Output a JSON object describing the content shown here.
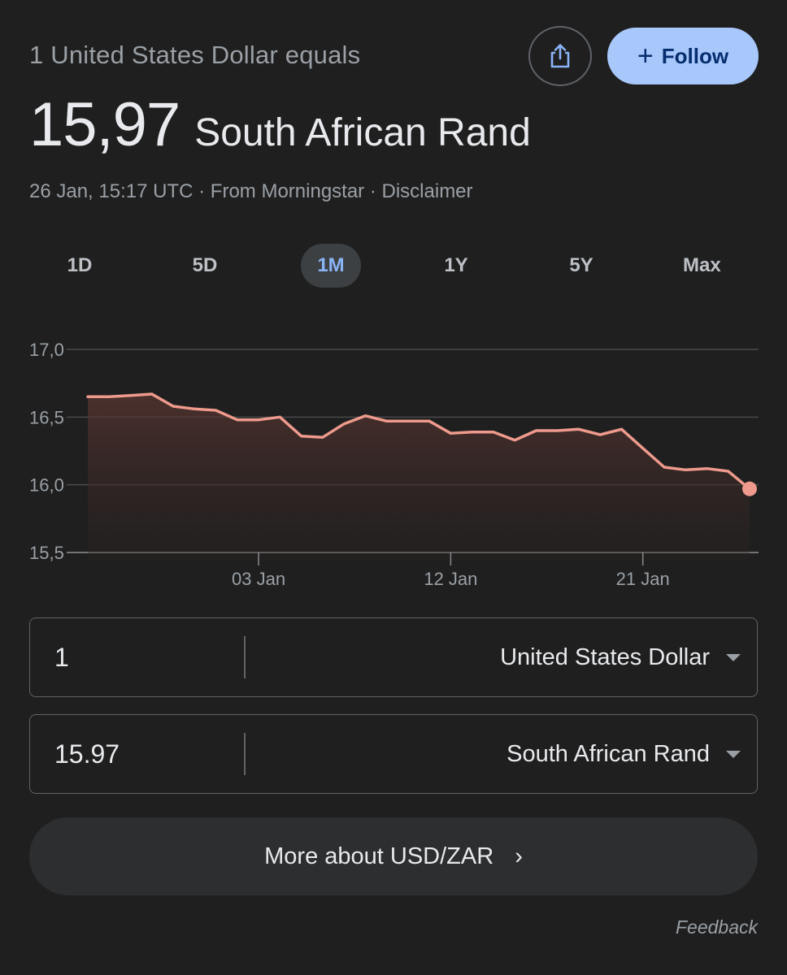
{
  "header": {
    "subtitle": "1 United States Dollar equals",
    "rate_value": "15,97",
    "rate_currency": "South African Rand",
    "timestamp": "26 Jan, 15:17 UTC",
    "source": "From Morningstar",
    "disclaimer": "Disclaimer",
    "separator": "·",
    "share_icon": "share-icon",
    "follow_label": "Follow",
    "follow_plus": "+"
  },
  "ranges": [
    {
      "label": "1D",
      "active": false
    },
    {
      "label": "5D",
      "active": false
    },
    {
      "label": "1M",
      "active": true
    },
    {
      "label": "1Y",
      "active": false
    },
    {
      "label": "5Y",
      "active": false
    },
    {
      "label": "Max",
      "active": false
    }
  ],
  "chart_data": {
    "type": "area",
    "title": "",
    "xlabel": "",
    "ylabel": "",
    "ylim": [
      15.5,
      17.0
    ],
    "y_ticks": [
      "17,0",
      "16,5",
      "16,0",
      "15,5"
    ],
    "y_tick_values": [
      17.0,
      16.5,
      16.0,
      15.5
    ],
    "x_ticks": [
      "03 Jan",
      "12 Jan",
      "21 Jan"
    ],
    "grid": true,
    "x_range": [
      "2023-12-26",
      "2024-01-26"
    ],
    "x_tick_dates": [
      "2024-01-03",
      "2024-01-12",
      "2024-01-21"
    ],
    "series": [
      {
        "points": [
          [
            "2023-12-26",
            16.65
          ],
          [
            "2023-12-27",
            16.65
          ],
          [
            "2023-12-28",
            16.66
          ],
          [
            "2023-12-29",
            16.67
          ],
          [
            "2023-12-30",
            16.58
          ],
          [
            "2023-12-31",
            16.56
          ],
          [
            "2024-01-01",
            16.55
          ],
          [
            "2024-01-02",
            16.48
          ],
          [
            "2024-01-03",
            16.48
          ],
          [
            "2024-01-04",
            16.5
          ],
          [
            "2024-01-05",
            16.36
          ],
          [
            "2024-01-06",
            16.35
          ],
          [
            "2024-01-07",
            16.45
          ],
          [
            "2024-01-08",
            16.51
          ],
          [
            "2024-01-09",
            16.47
          ],
          [
            "2024-01-10",
            16.47
          ],
          [
            "2024-01-11",
            16.47
          ],
          [
            "2024-01-12",
            16.38
          ],
          [
            "2024-01-13",
            16.39
          ],
          [
            "2024-01-14",
            16.39
          ],
          [
            "2024-01-15",
            16.33
          ],
          [
            "2024-01-16",
            16.4
          ],
          [
            "2024-01-17",
            16.4
          ],
          [
            "2024-01-18",
            16.41
          ],
          [
            "2024-01-19",
            16.37
          ],
          [
            "2024-01-20",
            16.41
          ],
          [
            "2024-01-21",
            16.27
          ],
          [
            "2024-01-22",
            16.13
          ],
          [
            "2024-01-23",
            16.11
          ],
          [
            "2024-01-24",
            16.12
          ],
          [
            "2024-01-25",
            16.1
          ],
          [
            "2024-01-26",
            15.97
          ]
        ]
      }
    ],
    "colors": {
      "line": "#ee9a8c",
      "fill_top": "#5a3631",
      "grid": "#4a4a4a",
      "axis": "#8a8a8a"
    }
  },
  "converter": {
    "from_amount": "1",
    "from_currency": "United States Dollar",
    "to_amount": "15.97",
    "to_currency": "South African Rand"
  },
  "more_label": "More about USD/ZAR",
  "more_chevron": "›",
  "feedback_label": "Feedback"
}
